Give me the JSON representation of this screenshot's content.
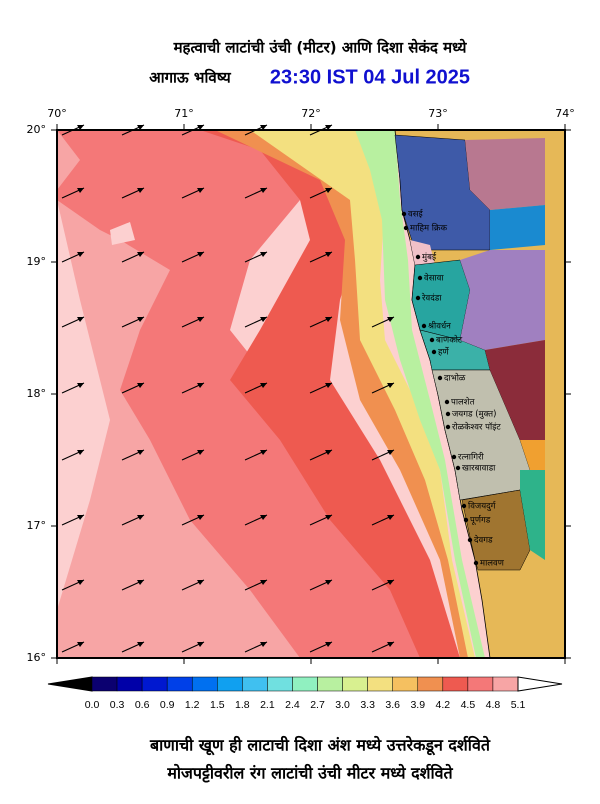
{
  "header": {
    "title_line1": "महत्वाची लाटांची उंची (मीटर) आणि दिशा सेकंद मध्ये",
    "title_line2": "आगाऊ भविष्य",
    "timestamp": "23:30 IST 04 Jul 2025"
  },
  "map": {
    "lon_labels": [
      "70°",
      "71°",
      "72°",
      "73°",
      "74°"
    ],
    "lat_labels": [
      "20°",
      "19°",
      "18°",
      "17°",
      "16°"
    ],
    "places": [
      "वसई",
      "माहिम क्रिक",
      "मुंबई",
      "वेसावा",
      "रेवदंडा",
      "श्रीवर्धन",
      "बाणकोट",
      "हर्णे",
      "दाभोळ",
      "पालशेत",
      "जयगड (मुक्त)",
      "रोळकेश्वर पॉइंट",
      "रत्नागिरी",
      "खारबावाडा",
      "विजयदुर्ग",
      "पूर्णगड",
      "देवगड",
      "मालवण"
    ]
  },
  "colorbar": {
    "ticks": [
      "0.0",
      "0.3",
      "0.6",
      "0.9",
      "1.2",
      "1.5",
      "1.8",
      "2.1",
      "2.4",
      "2.7",
      "3.0",
      "3.3",
      "3.6",
      "3.9",
      "4.2",
      "4.5",
      "4.8",
      "5.1"
    ],
    "colors": [
      "#0b0070",
      "#0000a8",
      "#0018d0",
      "#0040e8",
      "#0070f0",
      "#10a0f0",
      "#40c0f0",
      "#70e0e0",
      "#90f0c0",
      "#b8f0a0",
      "#d8f090",
      "#f3e080",
      "#f5c060",
      "#f09050",
      "#ee5a50",
      "#f47878",
      "#f7a5a5",
      "#fcd8d8"
    ]
  },
  "footer": {
    "line1": "बाणाची खूण ही लाटाची दिशा अंश मध्ये उत्तरेकडून दर्शविते",
    "line2": "मोजपट्टीवरील रंग लाटांची उंची मीटर मध्ये दर्शविते"
  }
}
